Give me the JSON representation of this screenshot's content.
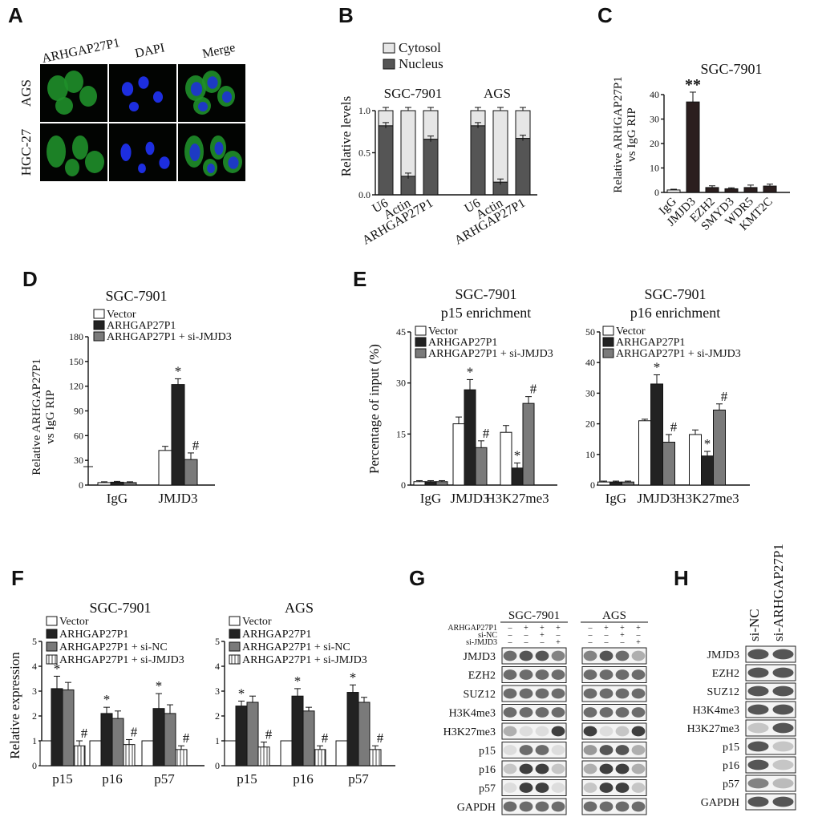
{
  "colors": {
    "white": "#ffffff",
    "black": "#222222",
    "gray": "#7a7a7a",
    "dark": "#555555",
    "light": "#e6e6e6",
    "green": "#2fd12f",
    "blue": "#2a2aff"
  },
  "panelA": {
    "letter": "A",
    "channels": [
      "ARHGAP27P1",
      "DAPI",
      "Merge"
    ],
    "rows": [
      "AGS",
      "HGC-27"
    ]
  },
  "panelB": {
    "letter": "B",
    "groups": [
      "SGC-7901",
      "AGS"
    ],
    "chart_data": {
      "type": "bar",
      "stacked": true,
      "ylabel": "Relative levels",
      "ylim": [
        0,
        1.0
      ],
      "yticks": [
        "0.0",
        "0.5",
        "1.0"
      ],
      "categories": [
        "U6",
        "Actin",
        "ARHGAP27P1",
        "U6",
        "Actin",
        "ARHGAP27P1"
      ],
      "series": [
        {
          "name": "Nucleus",
          "values": [
            0.82,
            0.22,
            0.66,
            0.82,
            0.15,
            0.67
          ]
        },
        {
          "name": "Cytosol",
          "values": [
            0.18,
            0.78,
            0.34,
            0.18,
            0.85,
            0.33
          ]
        }
      ]
    }
  },
  "panelC": {
    "letter": "C",
    "chart_data": {
      "type": "bar",
      "title": "SGC-7901",
      "ylabel": "Relative ARHGAP27P1\nvs IgG RIP",
      "ylim": [
        0,
        40
      ],
      "yticks": [
        "0",
        "10",
        "20",
        "30",
        "40"
      ],
      "categories": [
        "IgG",
        "JMJD3",
        "EZH2",
        "SMYD3",
        "WDR5",
        "KMT2C"
      ],
      "values": [
        1,
        37,
        2,
        1.5,
        2,
        2.6
      ],
      "errors": [
        0.3,
        4,
        0.7,
        0.4,
        1,
        0.8
      ],
      "annotations": [
        "",
        "**",
        "",
        "",
        "",
        ""
      ]
    }
  },
  "panelD": {
    "letter": "D",
    "chart_data": {
      "type": "bar",
      "title": "SGC-7901",
      "ylabel": "Relative ARHGAP27P1\nvs IgG RIP",
      "yticks": [
        "0",
        "30",
        "60",
        "90",
        "120",
        "150",
        "180"
      ],
      "ylim": [
        0,
        180
      ],
      "categories": [
        "IgG",
        "JMJD3"
      ],
      "series": [
        {
          "name": "Vector",
          "values": [
            3,
            42
          ],
          "errors": [
            1,
            5
          ],
          "marks": [
            "",
            ""
          ]
        },
        {
          "name": "ARHGAP27P1",
          "values": [
            3.5,
            122
          ],
          "errors": [
            1,
            7
          ],
          "marks": [
            "",
            "*"
          ]
        },
        {
          "name": "ARHGAP27P1 + si-JMJD3",
          "values": [
            3,
            31
          ],
          "errors": [
            1,
            8
          ],
          "marks": [
            "",
            "#"
          ]
        }
      ]
    }
  },
  "panelE": {
    "letter": "E",
    "charts": [
      {
        "type": "bar",
        "title": "SGC-7901",
        "subtitle": "p15 enrichment",
        "ylabel": "Percentage of input (%)",
        "ylim": [
          0,
          45
        ],
        "yticks": [
          "0",
          "15",
          "30",
          "45"
        ],
        "categories": [
          "IgG",
          "JMJD3",
          "H3K27me3"
        ],
        "series": [
          {
            "name": "Vector",
            "values": [
              1,
              18,
              15.5
            ],
            "errors": [
              0.3,
              2,
              2
            ],
            "marks": [
              "",
              "",
              ""
            ]
          },
          {
            "name": "ARHGAP27P1",
            "values": [
              1,
              28,
              5
            ],
            "errors": [
              0.3,
              3,
              1.5
            ],
            "marks": [
              "",
              "*",
              "*"
            ]
          },
          {
            "name": "ARHGAP27P1 + si-JMJD3",
            "values": [
              1,
              11,
              24
            ],
            "errors": [
              0.3,
              2,
              2
            ],
            "marks": [
              "",
              "#",
              "#"
            ]
          }
        ]
      },
      {
        "type": "bar",
        "title": "SGC-7901",
        "subtitle": "p16 enrichment",
        "ylabel": "",
        "ylim": [
          0,
          50
        ],
        "yticks": [
          "0",
          "10",
          "20",
          "30",
          "40",
          "50"
        ],
        "categories": [
          "IgG",
          "JMJD3",
          "H3K27me3"
        ],
        "series": [
          {
            "name": "Vector",
            "values": [
              1,
              21,
              16.5
            ],
            "errors": [
              0.3,
              0.5,
              1.5
            ],
            "marks": [
              "",
              "",
              ""
            ]
          },
          {
            "name": "ARHGAP27P1",
            "values": [
              1,
              33,
              9.5
            ],
            "errors": [
              0.3,
              3,
              1.5
            ],
            "marks": [
              "",
              "*",
              "*"
            ]
          },
          {
            "name": "ARHGAP27P1 + si-JMJD3",
            "values": [
              1,
              14,
              24.5
            ],
            "errors": [
              0.3,
              2.5,
              2
            ],
            "marks": [
              "",
              "#",
              "#"
            ]
          }
        ]
      }
    ]
  },
  "panelF": {
    "letter": "F",
    "charts": [
      {
        "type": "bar",
        "title": "SGC-7901",
        "ylabel": "Relative expression",
        "ylim": [
          0,
          5
        ],
        "yticks": [
          "0",
          "1",
          "2",
          "3",
          "4",
          "5"
        ],
        "categories": [
          "p15",
          "p16",
          "p57"
        ],
        "series": [
          {
            "name": "Vector",
            "values": [
              1,
              1,
              1
            ],
            "errors": [
              0,
              0,
              0
            ],
            "marks": [
              "",
              "",
              ""
            ]
          },
          {
            "name": "ARHGAP27P1",
            "values": [
              3.1,
              2.1,
              2.3
            ],
            "errors": [
              0.5,
              0.25,
              0.6
            ],
            "marks": [
              "*",
              "*",
              "*"
            ]
          },
          {
            "name": "ARHGAP27P1 + si-NC",
            "values": [
              3.05,
              1.9,
              2.1
            ],
            "errors": [
              0.3,
              0.3,
              0.35
            ],
            "marks": [
              "",
              "",
              ""
            ]
          },
          {
            "name": "ARHGAP27P1 + si-JMJD3",
            "values": [
              0.8,
              0.85,
              0.65
            ],
            "errors": [
              0.2,
              0.2,
              0.15
            ],
            "marks": [
              "#",
              "#",
              "#"
            ]
          }
        ]
      },
      {
        "type": "bar",
        "title": "AGS",
        "ylabel": "",
        "ylim": [
          0,
          5
        ],
        "yticks": [
          "0",
          "1",
          "2",
          "3",
          "4",
          "5"
        ],
        "categories": [
          "p15",
          "p16",
          "p57"
        ],
        "series": [
          {
            "name": "Vector",
            "values": [
              1,
              1,
              1
            ],
            "errors": [
              0,
              0,
              0
            ],
            "marks": [
              "",
              "",
              ""
            ]
          },
          {
            "name": "ARHGAP27P1",
            "values": [
              2.4,
              2.8,
              2.95
            ],
            "errors": [
              0.2,
              0.3,
              0.3
            ],
            "marks": [
              "*",
              "*",
              "*"
            ]
          },
          {
            "name": "ARHGAP27P1 + si-NC",
            "values": [
              2.55,
              2.2,
              2.55
            ],
            "errors": [
              0.25,
              0.15,
              0.2
            ],
            "marks": [
              "",
              "",
              ""
            ]
          },
          {
            "name": "ARHGAP27P1 + si-JMJD3",
            "values": [
              0.75,
              0.65,
              0.65
            ],
            "errors": [
              0.2,
              0.15,
              0.15
            ],
            "marks": [
              "#",
              "#",
              "#"
            ]
          }
        ]
      }
    ]
  },
  "panelG": {
    "letter": "G",
    "groups": [
      "SGC-7901",
      "AGS"
    ],
    "conditions": [
      {
        "label": "ARHGAP27P1",
        "signs": [
          "–",
          "+",
          "+",
          "+"
        ]
      },
      {
        "label": "si-NC",
        "signs": [
          "–",
          "–",
          "+",
          "–"
        ]
      },
      {
        "label": "si-JMJD3",
        "signs": [
          "–",
          "–",
          "–",
          "+"
        ]
      }
    ],
    "rows": [
      "JMJD3",
      "EZH2",
      "SUZ12",
      "H3K4me3",
      "H3K27me3",
      "p15",
      "p16",
      "p57",
      "GAPDH"
    ],
    "intensity": {
      "SGC-7901": [
        [
          0.6,
          0.7,
          0.7,
          0.5
        ],
        [
          0.6,
          0.6,
          0.6,
          0.6
        ],
        [
          0.6,
          0.6,
          0.6,
          0.6
        ],
        [
          0.6,
          0.6,
          0.6,
          0.6
        ],
        [
          0.3,
          0.1,
          0.1,
          0.8
        ],
        [
          0.1,
          0.6,
          0.6,
          0.1
        ],
        [
          0.2,
          0.8,
          0.8,
          0.2
        ],
        [
          0.1,
          0.8,
          0.8,
          0.1
        ],
        [
          0.6,
          0.6,
          0.6,
          0.6
        ]
      ],
      "AGS": [
        [
          0.5,
          0.7,
          0.6,
          0.3
        ],
        [
          0.6,
          0.6,
          0.6,
          0.6
        ],
        [
          0.6,
          0.6,
          0.6,
          0.6
        ],
        [
          0.6,
          0.6,
          0.6,
          0.6
        ],
        [
          0.8,
          0.1,
          0.2,
          0.8
        ],
        [
          0.4,
          0.7,
          0.7,
          0.3
        ],
        [
          0.3,
          0.8,
          0.8,
          0.3
        ],
        [
          0.2,
          0.8,
          0.8,
          0.2
        ],
        [
          0.6,
          0.6,
          0.6,
          0.6
        ]
      ]
    }
  },
  "panelH": {
    "letter": "H",
    "columns": [
      "si-NC",
      "si-ARHGAP27P1"
    ],
    "rows": [
      "JMJD3",
      "EZH2",
      "SUZ12",
      "H3K4me3",
      "H3K27me3",
      "p15",
      "p16",
      "p57",
      "GAPDH"
    ],
    "intensity": [
      [
        0.7,
        0.7
      ],
      [
        0.7,
        0.7
      ],
      [
        0.7,
        0.7
      ],
      [
        0.7,
        0.7
      ],
      [
        0.2,
        0.7
      ],
      [
        0.7,
        0.2
      ],
      [
        0.7,
        0.2
      ],
      [
        0.5,
        0.25
      ],
      [
        0.7,
        0.7
      ]
    ]
  }
}
